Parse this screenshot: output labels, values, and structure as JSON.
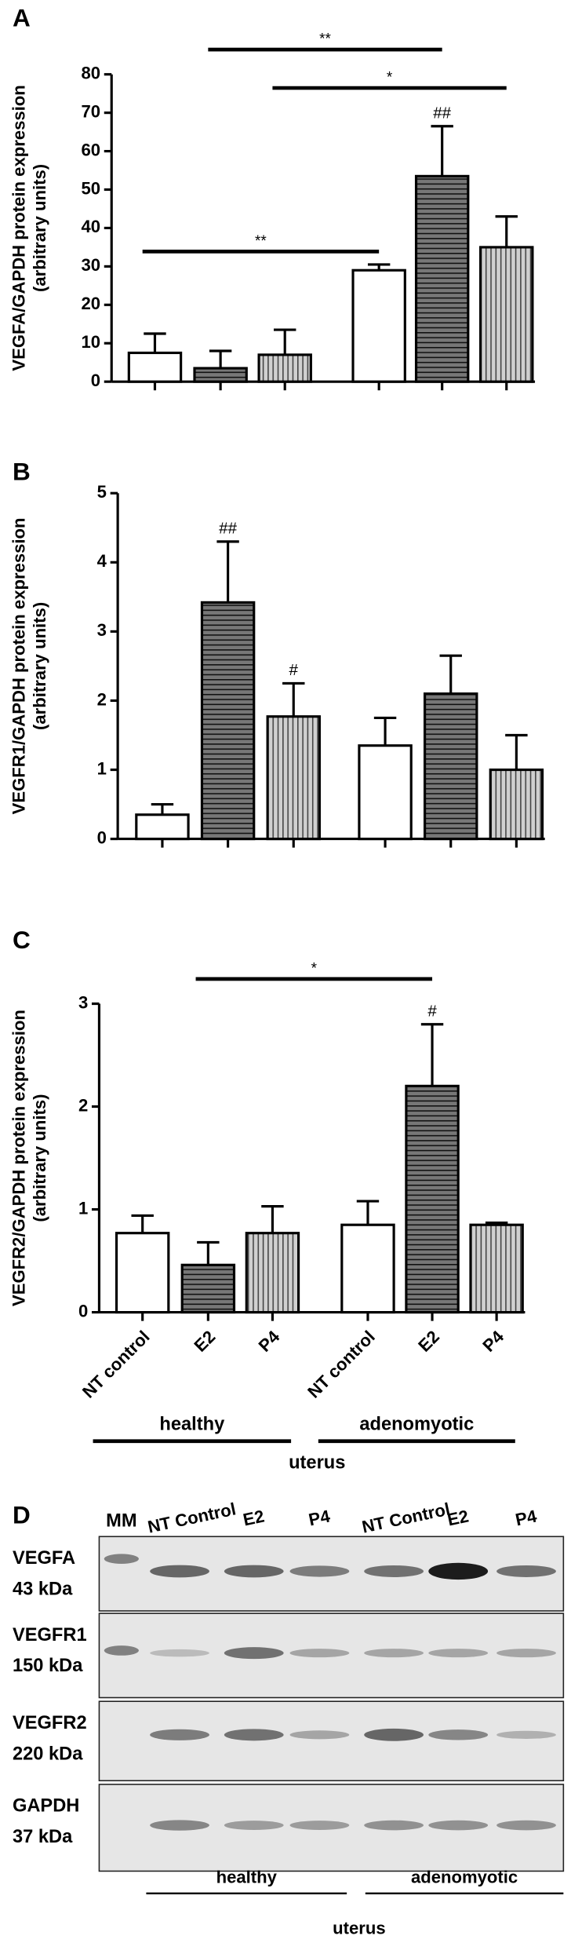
{
  "chart_data": [
    {
      "type": "bar",
      "label": "A",
      "y_label": "VEGFA/GAPDH protein expression",
      "y_label_sub": "(arbitrary units)",
      "values": [
        7.5,
        3.5,
        7,
        29,
        53.5,
        35
      ],
      "errors": [
        5,
        4.5,
        6.5,
        1.5,
        13,
        8
      ],
      "bar_patterns": [
        "white",
        "h-stripe",
        "v-stripe",
        "white",
        "h-stripe",
        "v-stripe"
      ],
      "ylim": [
        0,
        80
      ],
      "yticks": [
        0,
        10,
        20,
        30,
        40,
        50,
        60,
        70,
        80
      ],
      "brackets": [
        {
          "label": "**",
          "from": 1,
          "to": 4
        },
        {
          "label": "*",
          "from": 2,
          "to": 5
        },
        {
          "label": "**",
          "from": 0,
          "to": 3
        }
      ],
      "annotations": [
        {
          "text": "##",
          "bar": 4
        }
      ]
    },
    {
      "type": "bar",
      "label": "B",
      "y_label": "VEGFR1/GAPDH protein expression",
      "y_label_sub": "(arbitrary units)",
      "values": [
        0.35,
        3.42,
        1.77,
        1.35,
        2.1,
        1.0
      ],
      "errors": [
        0.15,
        0.88,
        0.48,
        0.4,
        0.55,
        0.5
      ],
      "bar_patterns": [
        "white",
        "h-stripe",
        "v-stripe",
        "white",
        "h-stripe",
        "v-stripe"
      ],
      "ylim": [
        0,
        5
      ],
      "yticks": [
        0,
        1,
        2,
        3,
        4,
        5
      ],
      "brackets": [],
      "annotations": [
        {
          "text": "##",
          "bar": 1
        },
        {
          "text": "#",
          "bar": 2
        }
      ]
    },
    {
      "type": "bar",
      "label": "C",
      "y_label": "VEGFR2/GAPDH protein expression",
      "y_label_sub": "(arbitrary units)",
      "categories": [
        "NT control",
        "E2",
        "P4",
        "NT control",
        "E2",
        "P4"
      ],
      "values": [
        0.77,
        0.46,
        0.77,
        0.85,
        2.2,
        0.85
      ],
      "errors": [
        0.17,
        0.22,
        0.26,
        0.23,
        0.6,
        0.02
      ],
      "bar_patterns": [
        "white",
        "h-stripe",
        "v-stripe",
        "white",
        "h-stripe",
        "v-stripe"
      ],
      "ylim": [
        0,
        3
      ],
      "yticks": [
        0,
        1,
        2,
        3
      ],
      "brackets": [
        {
          "label": "*",
          "from": 1,
          "to": 4
        }
      ],
      "annotations": [
        {
          "text": "#",
          "bar": 4
        }
      ],
      "groups": [
        {
          "label": "healthy",
          "from": 0,
          "to": 2
        },
        {
          "label": "adenomyotic",
          "from": 3,
          "to": 5
        }
      ],
      "group_title": "uterus"
    }
  ],
  "blot": {
    "label": "D",
    "marker": "MM",
    "lanes": [
      "NT Control",
      "E2",
      "P4",
      "NT Control",
      "E2",
      "P4"
    ],
    "rows": [
      {
        "protein": "VEGFA",
        "size": "43 kDa"
      },
      {
        "protein": "VEGFR1",
        "size": "150 kDa"
      },
      {
        "protein": "VEGFR2",
        "size": "220 kDa"
      },
      {
        "protein": "GAPDH",
        "size": "37 kDa"
      }
    ],
    "groups": [
      "healthy",
      "adenomyotic"
    ],
    "group_title": "uterus"
  }
}
